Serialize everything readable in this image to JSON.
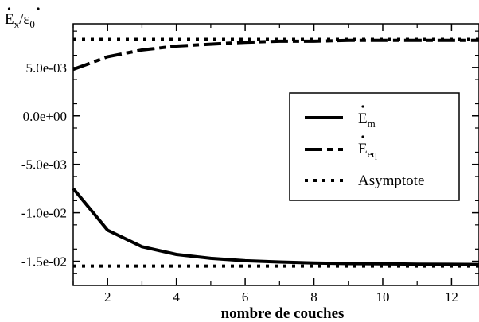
{
  "chart_data": {
    "type": "line",
    "xlabel": "nombre de couches",
    "ylabel": {
      "main": "E",
      "sub_x": "x",
      "slash": "/",
      "main2": "ε",
      "sub0": "0"
    },
    "xlim": [
      1,
      12.8
    ],
    "ylim": [
      -0.0175,
      0.0095
    ],
    "x_ticks": [
      2,
      4,
      6,
      8,
      10,
      12
    ],
    "x_tick_labels": [
      "2",
      "4",
      "6",
      "8",
      "10",
      "12"
    ],
    "y_ticks": [
      0.005,
      0.0,
      -0.005,
      -0.01,
      -0.015
    ],
    "y_tick_labels": [
      "5.0e-03",
      "0.0e+00",
      "-5.0e-03",
      "-1.0e-02",
      "-1.5e-02"
    ],
    "legend_position": "right",
    "series": [
      {
        "name": "E_m",
        "label_main": "E",
        "label_sub": "m",
        "style": "solid",
        "x": [
          1,
          2,
          3,
          4,
          5,
          6,
          7,
          8,
          9,
          10,
          11,
          12,
          12.8
        ],
        "y": [
          -0.0075,
          -0.0118,
          -0.0135,
          -0.0143,
          -0.0147,
          -0.01495,
          -0.01508,
          -0.01518,
          -0.01524,
          -0.01527,
          -0.0153,
          -0.01532,
          -0.01533
        ]
      },
      {
        "name": "E_eq",
        "label_main": "E",
        "label_sub": "eq",
        "style": "dashed",
        "x": [
          1,
          2,
          3,
          4,
          5,
          6,
          7,
          8,
          9,
          10,
          11,
          12,
          12.8
        ],
        "y": [
          0.0048,
          0.0061,
          0.0068,
          0.0072,
          0.0074,
          0.0076,
          0.0077,
          0.0077,
          0.0078,
          0.0078,
          0.0078,
          0.0078,
          0.0078
        ]
      },
      {
        "name": "Asymptote",
        "label_main": "Asymptote",
        "label_sub": "",
        "style": "dotted",
        "x": [
          1,
          12.8
        ],
        "y": [
          0.0079,
          0.0079
        ]
      },
      {
        "name": "Asymptote",
        "label_main": "",
        "label_sub": "",
        "style": "dotted",
        "x": [
          1,
          12.8
        ],
        "y": [
          -0.0155,
          -0.0155
        ]
      }
    ]
  }
}
